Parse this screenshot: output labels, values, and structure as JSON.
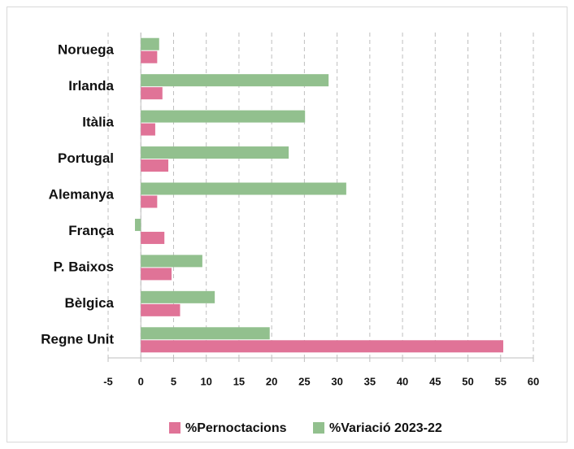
{
  "chart_data": {
    "type": "hbar",
    "categories": [
      "Noruega",
      "Irlanda",
      "Itàlia",
      "Portugal",
      "Alemanya",
      "França",
      "P. Baixos",
      "Bèlgica",
      "Regne Unit"
    ],
    "series": [
      {
        "name": "%Pernoctacions",
        "color": "#e07397",
        "values": [
          2.5,
          3.3,
          2.2,
          4.2,
          2.5,
          3.6,
          4.7,
          6.0,
          55.4
        ]
      },
      {
        "name": "%Variació 2023-22",
        "color": "#92c08e",
        "values": [
          2.8,
          28.7,
          25.1,
          22.6,
          31.4,
          -0.9,
          9.4,
          11.3,
          19.7
        ]
      }
    ],
    "xlim": [
      -5,
      60
    ],
    "xticks": [
      -5,
      0,
      5,
      10,
      15,
      20,
      25,
      30,
      35,
      40,
      45,
      50,
      55,
      60
    ],
    "grid": true,
    "legend": "bottom"
  }
}
